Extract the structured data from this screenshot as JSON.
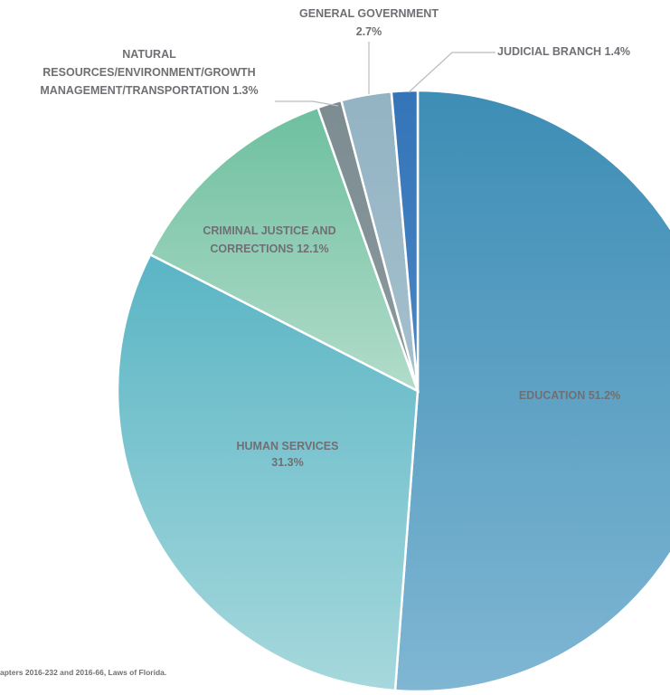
{
  "chart_data": {
    "type": "pie",
    "title": "",
    "slices": [
      {
        "name": "EDUCATION",
        "value": 51.2,
        "label_lines": [
          "EDUCATION 51.2%"
        ],
        "color_start": "#3d8db5",
        "color_end": "#7fb6d3"
      },
      {
        "name": "HUMAN SERVICES",
        "value": 31.3,
        "label_lines": [
          "HUMAN SERVICES",
          "31.3%"
        ],
        "color_start": "#5ab5c5",
        "color_end": "#a6d8dc"
      },
      {
        "name": "CRIMINAL JUSTICE AND CORRECTIONS",
        "value": 12.1,
        "label_lines": [
          "CRIMINAL JUSTICE AND",
          "CORRECTIONS 12.1%"
        ],
        "color_start": "#6dbf9f",
        "color_end": "#b2dccb"
      },
      {
        "name": "NATURAL RESOURCES/ENVIRONMENT/GROWTH MANAGEMENT/TRANSPORTATION",
        "value": 1.3,
        "label_lines": [
          "NATURAL",
          "RESOURCES/ENVIRONMENT/GROWTH",
          "MANAGEMENT/TRANSPORTATION 1.3%"
        ],
        "color_start": "#7c8c90",
        "color_end": "#8c9a9e"
      },
      {
        "name": "GENERAL GOVERNMENT",
        "value": 2.7,
        "label_lines": [
          "GENERAL GOVERNMENT",
          "2.7%"
        ],
        "color_start": "#93b3c3",
        "color_end": "#a5c0cd"
      },
      {
        "name": "JUDICIAL BRANCH",
        "value": 1.4,
        "label_lines": [
          "JUDICIAL BRANCH 1.4%"
        ],
        "color_start": "#3474b8",
        "color_end": "#4a86c4"
      }
    ],
    "start_angle_deg": 0,
    "direction": "clockwise",
    "legend": "none",
    "label_color": "#6e7074"
  },
  "footnote": "apters 2016-232 and 2016-66, Laws of Florida."
}
